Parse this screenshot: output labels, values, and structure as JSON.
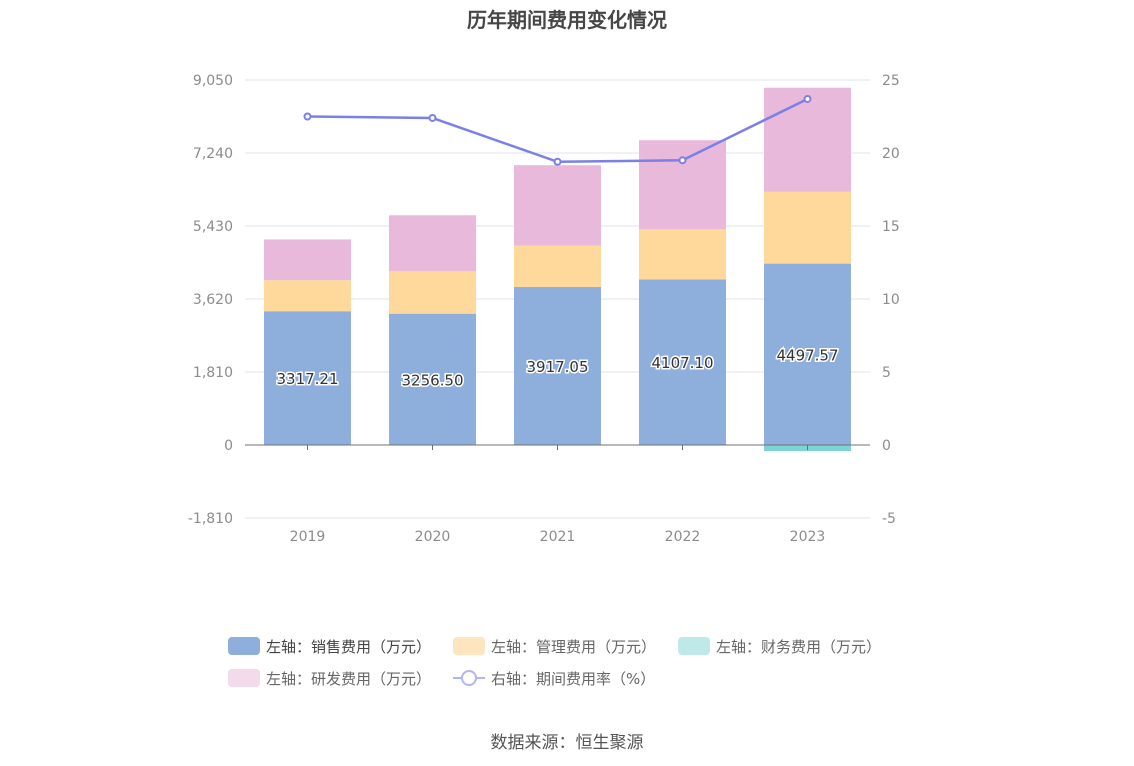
{
  "chart_data": {
    "type": "bar",
    "title": "历年期间费用变化情况",
    "categories": [
      "2019",
      "2020",
      "2021",
      "2022",
      "2023"
    ],
    "y_left": {
      "ticks": [
        -1810,
        0,
        1810,
        3620,
        5430,
        7240,
        9050
      ],
      "tick_labels": [
        "-1,810",
        "0",
        "1,810",
        "3,620",
        "5,430",
        "7,240",
        "9,050"
      ],
      "range": [
        -1810,
        9050
      ]
    },
    "y_right": {
      "ticks": [
        -5,
        0,
        5,
        10,
        15,
        20,
        25
      ],
      "tick_labels": [
        "-5",
        "0",
        "5",
        "10",
        "15",
        "20",
        "25"
      ],
      "range": [
        -5,
        25
      ]
    },
    "stacked": true,
    "grid": true,
    "legend_position": "bottom",
    "series": [
      {
        "name": "左轴：销售费用（万元）",
        "axis": "left",
        "type": "bar",
        "color": "#8eaedb",
        "values": [
          3317.21,
          3256.5,
          3917.05,
          4107.1,
          4497.57
        ],
        "data_labels": [
          "3317.21",
          "3256.50",
          "3917.05",
          "4107.10",
          "4497.57"
        ]
      },
      {
        "name": "左轴：管理费用（万元）",
        "axis": "left",
        "type": "bar",
        "color": "#fed99b",
        "values": [
          770,
          1050,
          1030,
          1240,
          1780
        ]
      },
      {
        "name": "左轴：财务费用（万元）",
        "axis": "left",
        "type": "bar",
        "color": "#7fd3d3",
        "values": [
          -10,
          -10,
          -10,
          -10,
          -150
        ]
      },
      {
        "name": "左轴：研发费用（万元）",
        "axis": "left",
        "type": "bar",
        "color": "#e8b9da",
        "values": [
          1010,
          1390,
          1990,
          2210,
          2580
        ]
      },
      {
        "name": "右轴：期间费用率（%）",
        "axis": "right",
        "type": "line",
        "color": "#7b7fe8",
        "values": [
          22.5,
          22.4,
          19.4,
          19.5,
          23.7
        ]
      }
    ]
  },
  "source": "数据来源：恒生聚源"
}
